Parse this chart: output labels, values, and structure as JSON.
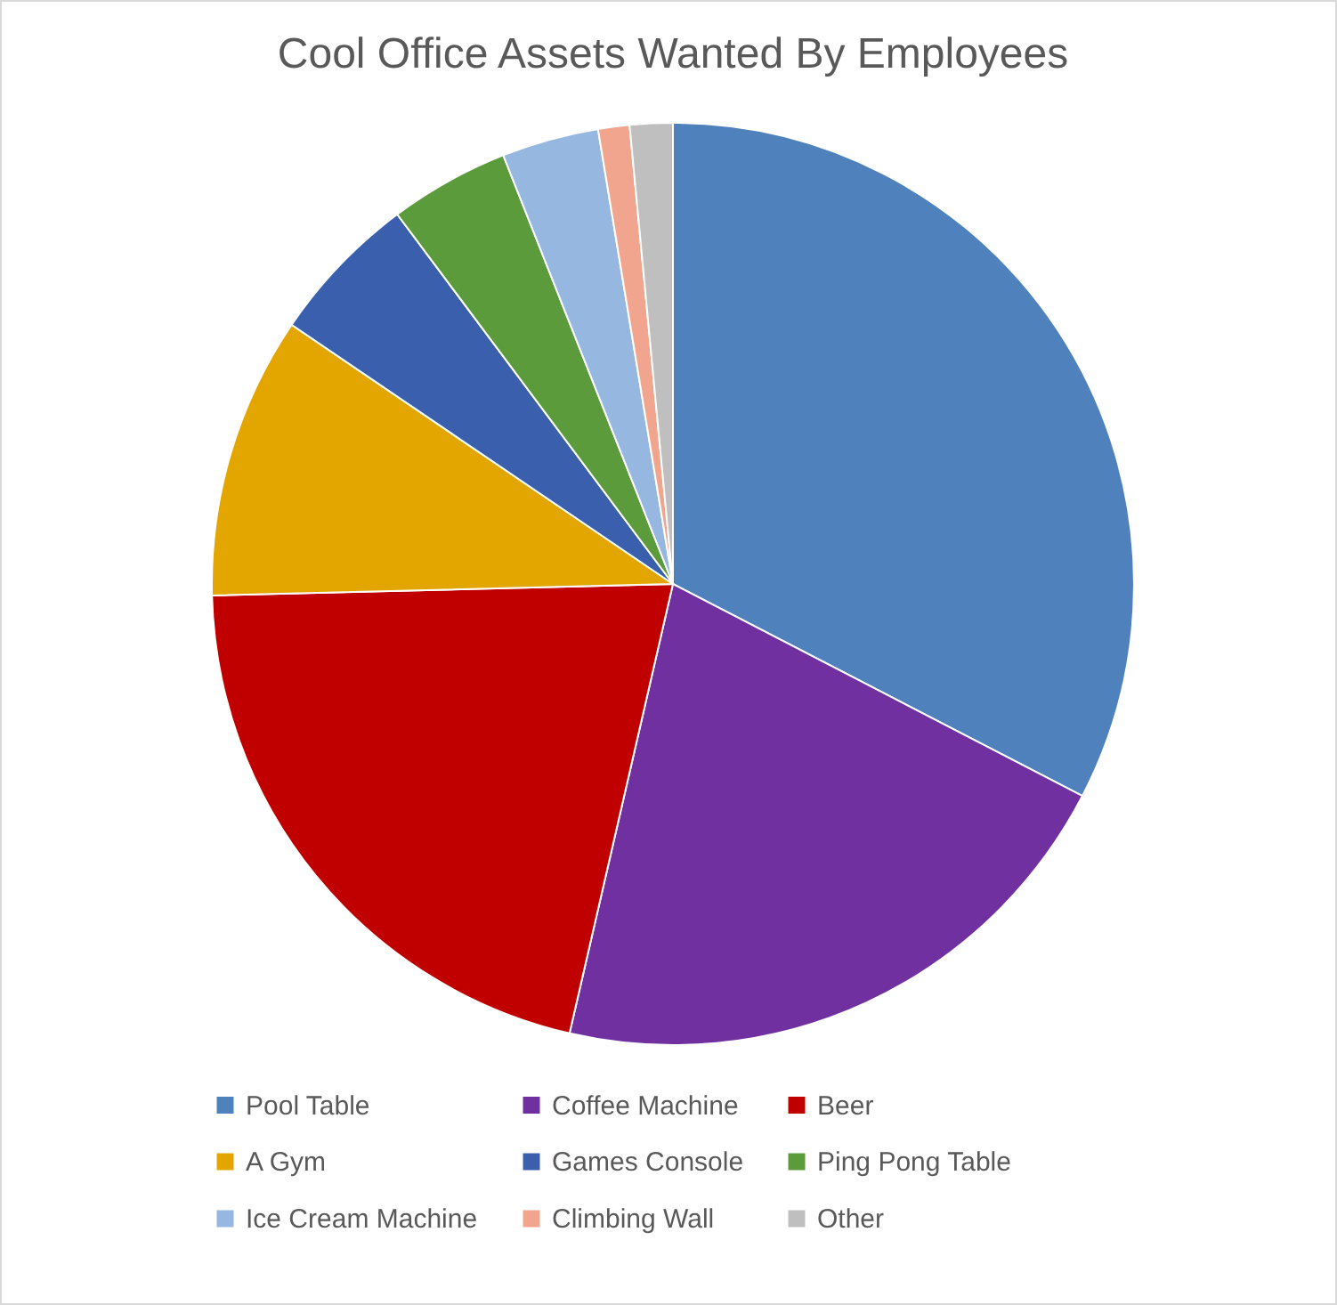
{
  "chart_data": {
    "type": "pie",
    "title": "Cool Office Assets Wanted By Employees",
    "categories": [
      "Pool Table",
      "Coffee Machine",
      "Beer",
      "A Gym",
      "Games Console",
      "Ping Pong Table",
      "Ice Cream Machine",
      "Climbing Wall",
      "Other"
    ],
    "values": [
      32.6,
      21.0,
      21.0,
      9.9,
      5.3,
      4.2,
      3.4,
      1.1,
      1.5
    ],
    "colors": [
      "#4f81bd",
      "#7030a0",
      "#c00000",
      "#e3a600",
      "#3a5fad",
      "#5b9b3c",
      "#95b7e0",
      "#f2a58e",
      "#bfbfbf"
    ],
    "legend": "bottom"
  }
}
